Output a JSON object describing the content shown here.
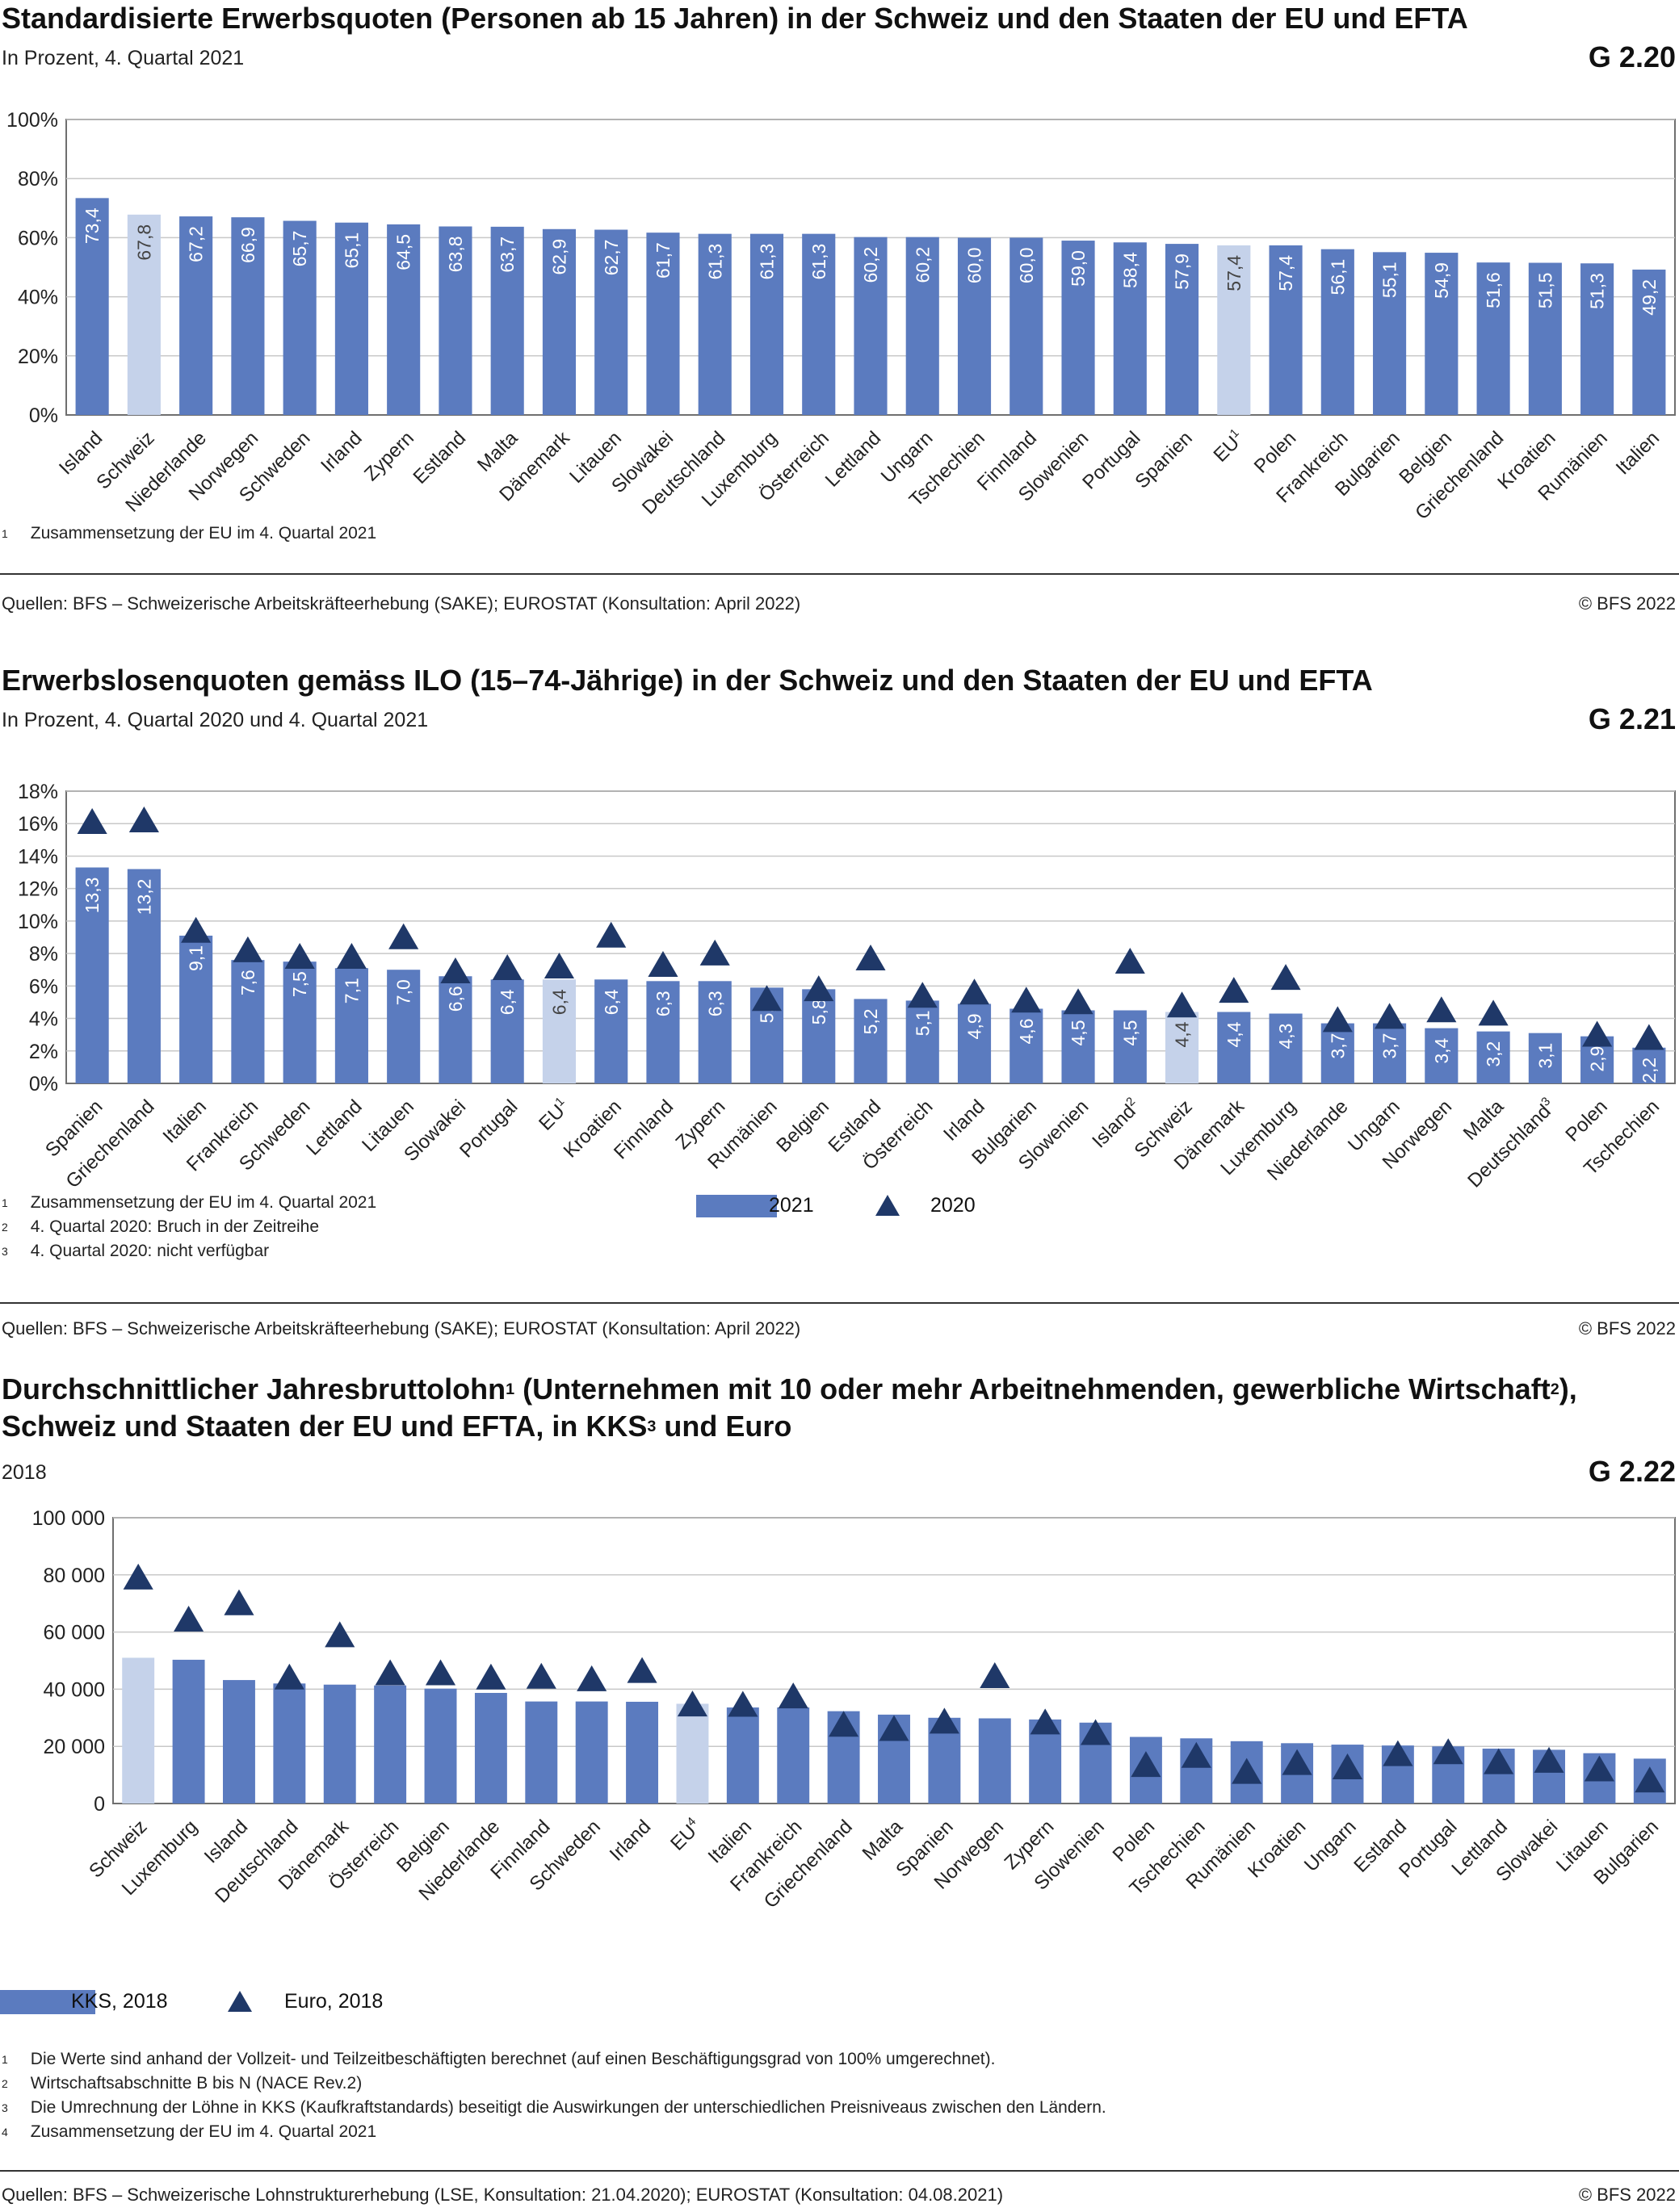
{
  "g220": {
    "title": "Standardisierte Erwerbsquoten (Personen ab 15 Jahren) in der Schweiz und den Staaten der EU und EFTA",
    "subtitle": "In Prozent, 4. Quartal 2021",
    "code": "G 2.20",
    "footnotes": [
      {
        "n": "1",
        "text": "Zusammensetzung der EU im 4. Quartal 2021"
      }
    ],
    "source": "Quellen: BFS – Schweizerische Arbeitskräfteerhebung (SAKE); EUROSTAT (Konsultation: April 2022)",
    "copyright": "© BFS 2022"
  },
  "g221": {
    "title": "Erwerbslosenquoten gemäss ILO (15–74-Jährige) in der Schweiz und den Staaten der EU und EFTA",
    "subtitle": "In Prozent, 4. Quartal 2020 und 4. Quartal 2021",
    "code": "G 2.21",
    "legend": {
      "bar": "2021",
      "marker": "2020"
    },
    "footnotes": [
      {
        "n": "1",
        "text": "Zusammensetzung der EU im 4. Quartal 2021"
      },
      {
        "n": "2",
        "text": "4. Quartal 2020: Bruch in der Zeitreihe"
      },
      {
        "n": "3",
        "text": "4. Quartal 2020: nicht verfügbar"
      }
    ],
    "source": "Quellen: BFS – Schweizerische Arbeitskräfteerhebung (SAKE); EUROSTAT (Konsultation: April 2022)",
    "copyright": "© BFS 2022"
  },
  "g222": {
    "title_a": "Durchschnittlicher Jahresbruttolohn",
    "title_sup1": "1",
    "title_b": " (Unternehmen mit 10 oder mehr Arbeitnehmenden, gewerbliche Wirtschaft",
    "title_sup2": "2",
    "title_c": "),",
    "title_line2_a": "Schweiz und Staaten der EU und EFTA, in KKS",
    "title_sup3": "3",
    "title_line2_b": " und Euro",
    "subtitle": "2018",
    "code": "G 2.22",
    "legend": {
      "bar": "KKS, 2018",
      "marker": "Euro, 2018"
    },
    "footnotes": [
      {
        "n": "1",
        "text": "Die Werte sind anhand der Vollzeit- und Teilzeitbeschäftigten berechnet (auf einen Beschäftigungsgrad von 100% umgerechnet)."
      },
      {
        "n": "2",
        "text": "Wirtschaftsabschnitte B bis N (NACE Rev.2)"
      },
      {
        "n": "3",
        "text": "Die Umrechnung der Löhne in KKS (Kaufkraftstandards) beseitigt die Auswirkungen der unterschiedlichen Preisniveaus zwischen den  Ländern."
      },
      {
        "n": "4",
        "text": "Zusammensetzung der EU im 4. Quartal 2021"
      }
    ],
    "source": "Quellen: BFS – Schweizerische Lohnstrukturerhebung (LSE, Konsultation: 21.04.2020); EUROSTAT (Konsultation: 04.08.2021)",
    "copyright": "© BFS 2022"
  },
  "colors": {
    "bar": "#5b7bbf",
    "highlight": "#c5d2ea",
    "marker": "#1f3868",
    "grid": "#c8c8c8",
    "frame": "#6f6f6f"
  },
  "chart_data": [
    {
      "id": "G 2.20",
      "type": "bar",
      "ylim": [
        0,
        100
      ],
      "yticks": [
        0,
        20,
        40,
        60,
        80,
        100
      ],
      "ytick_labels": [
        "0%",
        "20%",
        "40%",
        "60%",
        "80%",
        "100%"
      ],
      "grid": true,
      "categories": [
        "Island",
        "Schweiz",
        "Niederlande",
        "Norwegen",
        "Schweden",
        "Irland",
        "Zypern",
        "Estland",
        "Malta",
        "Dänemark",
        "Litauen",
        "Slowakei",
        "Deutschland",
        "Luxemburg",
        "Österreich",
        "Lettland",
        "Ungarn",
        "Tschechien",
        "Finnland",
        "Slowenien",
        "Portugal",
        "Spanien",
        "EU",
        "Polen",
        "Frankreich",
        "Bulgarien",
        "Belgien",
        "Griechenland",
        "Kroatien",
        "Rumänien",
        "Italien"
      ],
      "category_sups": [
        "",
        "",
        "",
        "",
        "",
        "",
        "",
        "",
        "",
        "",
        "",
        "",
        "",
        "",
        "",
        "",
        "",
        "",
        "",
        "",
        "",
        "",
        "1",
        "",
        "",
        "",
        "",
        "",
        "",
        "",
        ""
      ],
      "highlight": [
        "Schweiz",
        "EU"
      ],
      "values": [
        73.4,
        67.8,
        67.2,
        66.9,
        65.7,
        65.1,
        64.5,
        63.8,
        63.7,
        62.9,
        62.7,
        61.7,
        61.3,
        61.3,
        61.3,
        60.2,
        60.2,
        60.0,
        60.0,
        59.0,
        58.4,
        57.9,
        57.4,
        57.4,
        56.1,
        55.1,
        54.9,
        51.6,
        51.5,
        51.3,
        49.2
      ],
      "labels": [
        "73,4",
        "67,8",
        "67,2",
        "66,9",
        "65,7",
        "65,1",
        "64,5",
        "63,8",
        "63,7",
        "62,9",
        "62,7",
        "61,7",
        "61,3",
        "61,3",
        "61,3",
        "60,2",
        "60,2",
        "60,0",
        "60,0",
        "59,0",
        "58,4",
        "57,9",
        "57,4",
        "57,4",
        "56,1",
        "55,1",
        "54,9",
        "51,6",
        "51,5",
        "51,3",
        "49,2"
      ]
    },
    {
      "id": "G 2.21",
      "type": "bar",
      "ylim": [
        0,
        18
      ],
      "yticks": [
        0,
        2,
        4,
        6,
        8,
        10,
        12,
        14,
        16,
        18
      ],
      "ytick_labels": [
        "0%",
        "2%",
        "4%",
        "6%",
        "8%",
        "10%",
        "12%",
        "14%",
        "16%",
        "18%"
      ],
      "grid": true,
      "legend_position": "bottom",
      "categories": [
        "Spanien",
        "Griechenland",
        "Italien",
        "Frankreich",
        "Schweden",
        "Lettland",
        "Litauen",
        "Slowakei",
        "Portugal",
        "EU",
        "Kroatien",
        "Finnland",
        "Zypern",
        "Rumänien",
        "Belgien",
        "Estland",
        "Österreich",
        "Irland",
        "Bulgarien",
        "Slowenien",
        "Island",
        "Schweiz",
        "Dänemark",
        "Luxemburg",
        "Niederlande",
        "Ungarn",
        "Norwegen",
        "Malta",
        "Deutschland",
        "Polen",
        "Tschechien"
      ],
      "category_sups": [
        "",
        "",
        "",
        "",
        "",
        "",
        "",
        "",
        "",
        "1",
        "",
        "",
        "",
        "",
        "",
        "",
        "",
        "",
        "",
        "",
        "2",
        "",
        "",
        "",
        "",
        "",
        "",
        "",
        "3",
        "",
        ""
      ],
      "highlight": [
        "EU",
        "Schweiz"
      ],
      "series": [
        {
          "name": "2021",
          "kind": "bar",
          "values": [
            13.3,
            13.2,
            9.1,
            7.6,
            7.5,
            7.1,
            7.0,
            6.6,
            6.4,
            6.4,
            6.4,
            6.3,
            6.3,
            5.9,
            5.8,
            5.2,
            5.1,
            4.9,
            4.6,
            4.5,
            4.5,
            4.4,
            4.4,
            4.3,
            3.7,
            3.7,
            3.4,
            3.2,
            3.1,
            2.9,
            2.2
          ],
          "labels": [
            "13,3",
            "13,2",
            "9,1",
            "7,6",
            "7,5",
            "7,1",
            "7,0",
            "6,6",
            "6,4",
            "6,4",
            "6,4",
            "6,3",
            "6,3",
            "5,9",
            "5,8",
            "5,2",
            "5,1",
            "4,9",
            "4,6",
            "4,5",
            "4,5",
            "4,4",
            "4,4",
            "4,3",
            "3,7",
            "3,7",
            "3,4",
            "3,2",
            "3,1",
            "2,9",
            "2,2"
          ]
        },
        {
          "name": "2020",
          "kind": "marker",
          "values": [
            16.0,
            16.1,
            9.3,
            8.1,
            7.7,
            7.7,
            8.9,
            6.8,
            7.0,
            7.1,
            9.0,
            7.2,
            7.9,
            5.1,
            5.7,
            7.6,
            5.3,
            5.5,
            5.0,
            4.9,
            7.4,
            4.7,
            5.6,
            6.4,
            3.8,
            4.0,
            4.4,
            4.2,
            null,
            2.9,
            2.7
          ]
        }
      ]
    },
    {
      "id": "G 2.22",
      "type": "bar",
      "ylim": [
        0,
        100000
      ],
      "yticks": [
        0,
        20000,
        40000,
        60000,
        80000,
        100000
      ],
      "ytick_labels": [
        "0",
        "20 000",
        "40 000",
        "60 000",
        "80 000",
        "100 000"
      ],
      "grid": true,
      "legend_position": "bottom-left",
      "categories": [
        "Schweiz",
        "Luxemburg",
        "Island",
        "Deutschland",
        "Dänemark",
        "Österreich",
        "Belgien",
        "Niederlande",
        "Finnland",
        "Schweden",
        "Irland",
        "EU",
        "Italien",
        "Frankreich",
        "Griechenland",
        "Malta",
        "Spanien",
        "Norwegen",
        "Zypern",
        "Slowenien",
        "Polen",
        "Tschechien",
        "Rumänien",
        "Kroatien",
        "Ungarn",
        "Estland",
        "Portugal",
        "Lettland",
        "Slowakei",
        "Litauen",
        "Bulgarien"
      ],
      "category_sups": [
        "",
        "",
        "",
        "",
        "",
        "",
        "",
        "",
        "",
        "",
        "",
        "4",
        "",
        "",
        "",
        "",
        "",
        "",
        "",
        "",
        "",
        "",
        "",
        "",
        "",
        "",
        "",
        "",
        "",
        "",
        ""
      ],
      "highlight": [
        "Schweiz",
        "EU"
      ],
      "series": [
        {
          "name": "KKS, 2018",
          "kind": "bar",
          "values": [
            51000,
            50300,
            43200,
            42000,
            41600,
            41300,
            40200,
            38700,
            35700,
            35700,
            35600,
            34900,
            33600,
            33600,
            32300,
            31100,
            30000,
            29800,
            29400,
            28300,
            23300,
            22800,
            21800,
            21100,
            20600,
            20300,
            20000,
            19200,
            18800,
            17600,
            15700
          ]
        },
        {
          "name": "Euro, 2018",
          "kind": "marker",
          "values": [
            78500,
            63800,
            69500,
            43500,
            58300,
            45000,
            45000,
            43500,
            43800,
            42900,
            45800,
            34100,
            34000,
            36900,
            27000,
            25500,
            28100,
            44000,
            27800,
            24100,
            12900,
            16100,
            10500,
            13600,
            12100,
            16700,
            17400,
            13900,
            14400,
            11400,
            7500
          ]
        }
      ]
    }
  ]
}
